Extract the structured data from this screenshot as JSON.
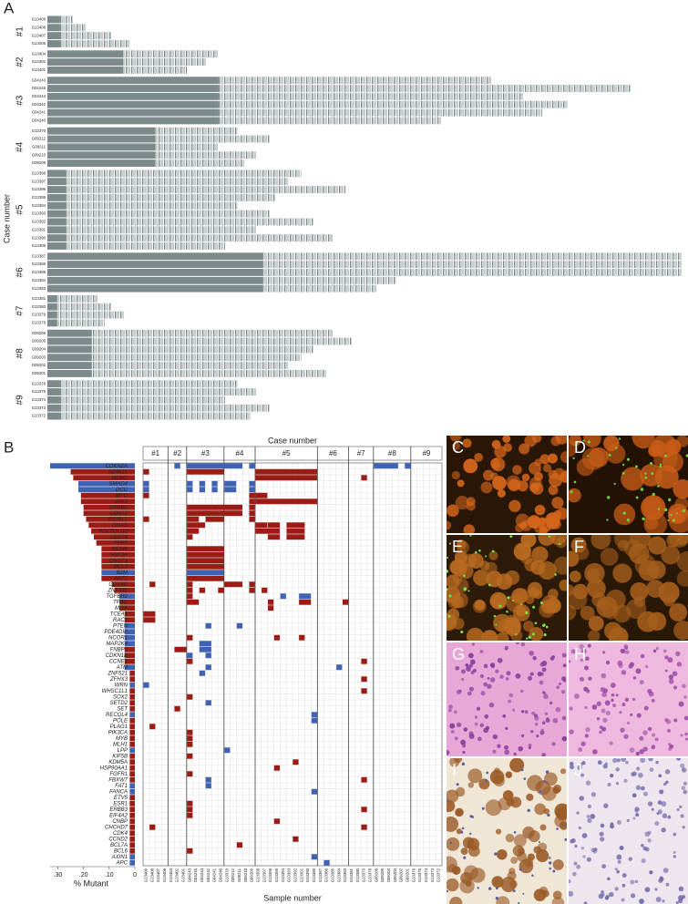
{
  "panel_a": {
    "label": "A",
    "y_label": "Case number",
    "cases": [
      {
        "name": "#1",
        "shared": 2,
        "samples": [
          "G13409",
          "G13408",
          "G13407",
          "G13406"
        ],
        "totals": [
          4,
          6,
          10,
          13
        ]
      },
      {
        "name": "#2",
        "shared": 12,
        "samples": [
          "G13404",
          "G13402",
          "G13401"
        ],
        "totals": [
          27,
          25,
          22
        ]
      },
      {
        "name": "#3",
        "shared": 27,
        "samples": [
          "G04243",
          "G04245",
          "G04244",
          "G04242",
          "G04241",
          "G04240"
        ],
        "totals": [
          70,
          92,
          75,
          82,
          78,
          62
        ]
      },
      {
        "name": "#4",
        "shared": 17,
        "samples": [
          "G13370",
          "G09212",
          "G09211",
          "G09210",
          "G09209"
        ],
        "totals": [
          30,
          35,
          27,
          33,
          31
        ]
      },
      {
        "name": "#5",
        "shared": 3,
        "samples": [
          "G13398",
          "G13397",
          "G13396",
          "G13395",
          "G13394",
          "G13393",
          "G13392",
          "G13391",
          "G13390",
          "G13389"
        ],
        "totals": [
          40,
          38,
          47,
          36,
          30,
          35,
          42,
          33,
          45,
          28
        ]
      },
      {
        "name": "#6",
        "shared": 34,
        "samples": [
          "G13387",
          "G13386",
          "G13385",
          "G13384",
          "G13383"
        ],
        "totals": [
          100,
          100,
          100,
          55,
          52
        ]
      },
      {
        "name": "#7",
        "shared": 1.5,
        "samples": [
          "G13381",
          "G13380",
          "G13379",
          "G13378"
        ],
        "totals": [
          8,
          10,
          12,
          9
        ]
      },
      {
        "name": "#8",
        "shared": 7,
        "samples": [
          "G09206",
          "G09205",
          "G09204",
          "G09203",
          "G09202",
          "G09201"
        ],
        "totals": [
          45,
          48,
          42,
          40,
          38,
          44
        ]
      },
      {
        "name": "#9",
        "shared": 2,
        "samples": [
          "G13376",
          "G13375",
          "G13374",
          "G13373",
          "G13372"
        ],
        "totals": [
          30,
          33,
          28,
          35,
          32
        ]
      }
    ]
  },
  "panel_b": {
    "label": "B",
    "chart_data": {
      "type": "bar",
      "x_label": "% Mutant",
      "categories": [
        "CDKN2A",
        "NDRG1",
        "MDM2",
        "SMAD4",
        "DCC",
        "MYC",
        "JAK2",
        "ERBB2",
        "CDK12",
        "SS18L1",
        "GNAS",
        "PDCD1LG2",
        "CD274",
        "TFPT",
        "MDM4",
        "H3F3A",
        "CNOT3",
        "BCL3",
        "B2M",
        "AKT2",
        "COX6C",
        "ZNF331",
        "TGFBR2",
        "TFRC",
        "MITF",
        "TCEA1",
        "RAC1",
        "PTEN",
        "PDE4DIP",
        "NCOR1",
        "MAP2K4",
        "FNBP1",
        "CDKN1B",
        "CCNE1",
        "ATM",
        "ZNF521",
        "ZFHX3",
        "WRN",
        "WHSC1L1",
        "SOX2",
        "SETD2",
        "SET",
        "RECQL4",
        "POLE",
        "PLAG1",
        "PIK3CA",
        "MYB",
        "MLH1",
        "LPP",
        "KIF5B",
        "KDM5A",
        "HSP90AA1",
        "FGFR1",
        "FBXW7",
        "FAT1",
        "FANCA",
        "ETV5",
        "ESR1",
        "ERBB3",
        "EIF4A2",
        "CNBP",
        "CHCHD7",
        "CDK4",
        "CCND2",
        "BCL7A",
        "BCL6",
        "AXIN1",
        "APC"
      ],
      "values": [
        0.33,
        0.25,
        0.24,
        0.22,
        0.22,
        0.21,
        0.21,
        0.2,
        0.2,
        0.19,
        0.18,
        0.17,
        0.16,
        0.15,
        0.13,
        0.13,
        0.13,
        0.13,
        0.13,
        0.13,
        0.09,
        0.08,
        0.06,
        0.06,
        0.06,
        0.04,
        0.04,
        0.04,
        0.04,
        0.04,
        0.04,
        0.04,
        0.04,
        0.04,
        0.04,
        0.02,
        0.02,
        0.02,
        0.02,
        0.02,
        0.02,
        0.02,
        0.02,
        0.02,
        0.02,
        0.02,
        0.02,
        0.02,
        0.02,
        0.02,
        0.02,
        0.02,
        0.02,
        0.02,
        0.02,
        0.02,
        0.02,
        0.02,
        0.02,
        0.02,
        0.02,
        0.02,
        0.02,
        0.02,
        0.02,
        0.02,
        0.02,
        0.02
      ],
      "value_colors": [
        1,
        0,
        0,
        1,
        1,
        0,
        0,
        0,
        0,
        0,
        0,
        0,
        0,
        0,
        0,
        0,
        0,
        0,
        1,
        0,
        0,
        0,
        1,
        0,
        0,
        0,
        0,
        1,
        1,
        1,
        1,
        0,
        0,
        0,
        1,
        0,
        0,
        1,
        0,
        0,
        0,
        0,
        1,
        0,
        0,
        0,
        0,
        0,
        1,
        0,
        0,
        0,
        0,
        0,
        1,
        1,
        0,
        0,
        0,
        0,
        0,
        0,
        0,
        0,
        0,
        0,
        1,
        1
      ],
      "colors": [
        "#9b1c14",
        "#3f63b2"
      ],
      "xlim": [
        0.33,
        0
      ],
      "xticks": [
        {
          "value": 0.3,
          "label": ".30"
        },
        {
          "value": 0.2,
          "label": ".20"
        },
        {
          "value": 0.1,
          "label": ".10"
        },
        0
      ]
    },
    "matrix": {
      "title": "Case number",
      "x_label": "Sample number",
      "alterations": [
        [
          0,
          5,
          5,
          1
        ],
        [
          0,
          7,
          15,
          1
        ],
        [
          0,
          17,
          17,
          1
        ],
        [
          0,
          37,
          40,
          1
        ],
        [
          0,
          42,
          42,
          1
        ],
        [
          1,
          0,
          0,
          0
        ],
        [
          1,
          7,
          12,
          0
        ],
        [
          1,
          18,
          27,
          0
        ],
        [
          2,
          18,
          27,
          0
        ],
        [
          2,
          35,
          35,
          0
        ],
        [
          3,
          0,
          0,
          1
        ],
        [
          3,
          7,
          7,
          1
        ],
        [
          3,
          9,
          9,
          1
        ],
        [
          3,
          11,
          11,
          1
        ],
        [
          3,
          13,
          14,
          1
        ],
        [
          3,
          17,
          17,
          1
        ],
        [
          4,
          0,
          0,
          1
        ],
        [
          4,
          7,
          7,
          1
        ],
        [
          4,
          9,
          9,
          1
        ],
        [
          4,
          11,
          11,
          1
        ],
        [
          4,
          13,
          14,
          1
        ],
        [
          4,
          17,
          17,
          1
        ],
        [
          5,
          0,
          0,
          0
        ],
        [
          5,
          17,
          17,
          0
        ],
        [
          5,
          18,
          19,
          0
        ],
        [
          6,
          17,
          17,
          0
        ],
        [
          6,
          18,
          27,
          0
        ],
        [
          7,
          7,
          15,
          0
        ],
        [
          7,
          17,
          17,
          0
        ],
        [
          8,
          7,
          15,
          0
        ],
        [
          8,
          17,
          17,
          0
        ],
        [
          9,
          0,
          0,
          0
        ],
        [
          9,
          7,
          8,
          0
        ],
        [
          9,
          10,
          12,
          0
        ],
        [
          9,
          17,
          17,
          0
        ],
        [
          10,
          7,
          9,
          0
        ],
        [
          10,
          18,
          19,
          0
        ],
        [
          10,
          20,
          21,
          0
        ],
        [
          10,
          23,
          25,
          0
        ],
        [
          11,
          7,
          8,
          0
        ],
        [
          11,
          18,
          21,
          0
        ],
        [
          11,
          23,
          25,
          0
        ],
        [
          12,
          7,
          7,
          0
        ],
        [
          12,
          20,
          21,
          0
        ],
        [
          12,
          23,
          25,
          0
        ],
        [
          14,
          7,
          12,
          0
        ],
        [
          15,
          7,
          12,
          0
        ],
        [
          16,
          7,
          12,
          0
        ],
        [
          17,
          7,
          12,
          0
        ],
        [
          18,
          7,
          12,
          1
        ],
        [
          19,
          7,
          12,
          0
        ],
        [
          20,
          1,
          1,
          0
        ],
        [
          20,
          7,
          7,
          0
        ],
        [
          20,
          13,
          15,
          0
        ],
        [
          20,
          17,
          17,
          0
        ],
        [
          21,
          7,
          7,
          0
        ],
        [
          21,
          9,
          9,
          0
        ],
        [
          21,
          12,
          12,
          0
        ],
        [
          21,
          17,
          17,
          0
        ],
        [
          21,
          19,
          19,
          0
        ],
        [
          22,
          7,
          7,
          0
        ],
        [
          22,
          22,
          22,
          1
        ],
        [
          22,
          25,
          26,
          1
        ],
        [
          23,
          7,
          8,
          0
        ],
        [
          23,
          20,
          20,
          0
        ],
        [
          23,
          25,
          26,
          0
        ],
        [
          23,
          32,
          32,
          0
        ],
        [
          24,
          20,
          20,
          0
        ],
        [
          25,
          0,
          1,
          0
        ],
        [
          26,
          0,
          1,
          0
        ],
        [
          27,
          10,
          10,
          1
        ],
        [
          27,
          15,
          15,
          1
        ],
        [
          29,
          7,
          7,
          0
        ],
        [
          29,
          21,
          21,
          0
        ],
        [
          29,
          25,
          25,
          0
        ],
        [
          30,
          9,
          10,
          1
        ],
        [
          31,
          5,
          6,
          0
        ],
        [
          31,
          9,
          10,
          1
        ],
        [
          32,
          7,
          7,
          1
        ],
        [
          32,
          10,
          10,
          1
        ],
        [
          33,
          7,
          7,
          0
        ],
        [
          33,
          35,
          35,
          0
        ],
        [
          34,
          10,
          10,
          1
        ],
        [
          34,
          31,
          31,
          1
        ],
        [
          35,
          9,
          9,
          1
        ],
        [
          36,
          35,
          35,
          0
        ],
        [
          37,
          0,
          0,
          1
        ],
        [
          38,
          35,
          35,
          0
        ],
        [
          39,
          7,
          7,
          0
        ],
        [
          40,
          10,
          10,
          1
        ],
        [
          41,
          5,
          5,
          0
        ],
        [
          42,
          27,
          27,
          1
        ],
        [
          43,
          27,
          27,
          1
        ],
        [
          44,
          1,
          1,
          0
        ],
        [
          45,
          7,
          7,
          0
        ],
        [
          46,
          7,
          7,
          0
        ],
        [
          47,
          7,
          7,
          0
        ],
        [
          48,
          13,
          13,
          1
        ],
        [
          49,
          7,
          7,
          0
        ],
        [
          50,
          24,
          24,
          0
        ],
        [
          51,
          21,
          21,
          0
        ],
        [
          52,
          7,
          7,
          0
        ],
        [
          53,
          10,
          10,
          1
        ],
        [
          53,
          35,
          35,
          0
        ],
        [
          54,
          10,
          10,
          1
        ],
        [
          55,
          27,
          27,
          1
        ],
        [
          57,
          7,
          7,
          0
        ],
        [
          58,
          7,
          7,
          0
        ],
        [
          58,
          35,
          35,
          0
        ],
        [
          59,
          7,
          7,
          0
        ],
        [
          60,
          21,
          21,
          0
        ],
        [
          61,
          1,
          1,
          0
        ],
        [
          61,
          35,
          35,
          0
        ],
        [
          63,
          24,
          24,
          0
        ],
        [
          64,
          15,
          15,
          0
        ],
        [
          65,
          7,
          7,
          0
        ],
        [
          66,
          27,
          27,
          1
        ],
        [
          67,
          29,
          29,
          1
        ]
      ]
    }
  },
  "micrographs": [
    "C",
    "D",
    "E",
    "F",
    "G",
    "H",
    "I",
    "J"
  ]
}
